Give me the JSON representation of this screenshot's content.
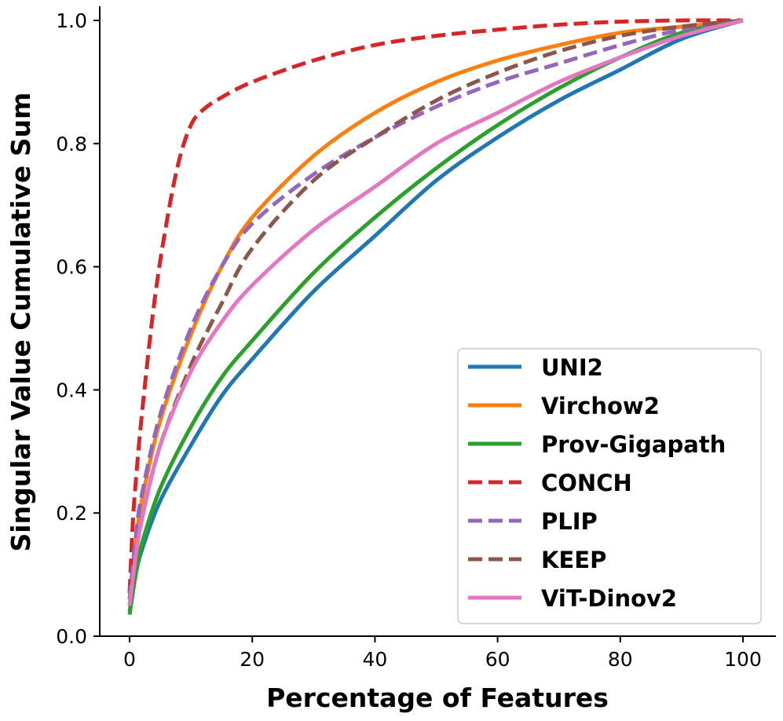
{
  "chart_data": {
    "type": "line",
    "title": "",
    "xlabel": "Percentage of Features",
    "ylabel": "Singular Value Cumulative Sum",
    "xlim": [
      -5,
      105
    ],
    "ylim": [
      0,
      1.02
    ],
    "xticks": [
      0,
      20,
      40,
      60,
      80,
      100
    ],
    "xtick_labels": [
      "0",
      "20",
      "40",
      "60",
      "80",
      "100"
    ],
    "yticks": [
      0.0,
      0.2,
      0.4,
      0.6,
      0.8,
      1.0
    ],
    "ytick_labels": [
      "0.0",
      "0.2",
      "0.4",
      "0.6",
      "0.8",
      "1.0"
    ],
    "grid": false,
    "legend_position": "lower-right",
    "series": [
      {
        "name": "UNI2",
        "color": "#1f77b4",
        "style": "solid",
        "x": [
          0,
          1,
          2,
          5,
          10,
          15,
          20,
          30,
          40,
          50,
          60,
          70,
          80,
          90,
          100
        ],
        "y": [
          0.04,
          0.1,
          0.14,
          0.22,
          0.31,
          0.39,
          0.45,
          0.56,
          0.65,
          0.74,
          0.81,
          0.87,
          0.92,
          0.97,
          1.0
        ]
      },
      {
        "name": "Virchow2",
        "color": "#ff7f0e",
        "style": "solid",
        "x": [
          0,
          1,
          2,
          5,
          10,
          15,
          20,
          30,
          40,
          50,
          60,
          70,
          80,
          90,
          100
        ],
        "y": [
          0.06,
          0.15,
          0.22,
          0.35,
          0.49,
          0.6,
          0.68,
          0.78,
          0.85,
          0.9,
          0.935,
          0.96,
          0.98,
          0.99,
          1.0
        ]
      },
      {
        "name": "Prov-Gigapath",
        "color": "#2ca02c",
        "style": "solid",
        "x": [
          0,
          1,
          2,
          5,
          10,
          15,
          20,
          30,
          40,
          50,
          60,
          70,
          80,
          90,
          100
        ],
        "y": [
          0.035,
          0.1,
          0.15,
          0.24,
          0.34,
          0.42,
          0.48,
          0.59,
          0.68,
          0.76,
          0.83,
          0.89,
          0.94,
          0.98,
          1.0
        ]
      },
      {
        "name": "CONCH",
        "color": "#d62728",
        "style": "dashed",
        "x": [
          0,
          0.5,
          1,
          2,
          4,
          6,
          8,
          10,
          12,
          15,
          20,
          30,
          40,
          50,
          60,
          70,
          80,
          90,
          100
        ],
        "y": [
          0.07,
          0.18,
          0.25,
          0.36,
          0.54,
          0.67,
          0.77,
          0.83,
          0.855,
          0.875,
          0.9,
          0.935,
          0.96,
          0.975,
          0.985,
          0.993,
          0.998,
          1.0,
          1.0
        ]
      },
      {
        "name": "PLIP",
        "color": "#9467bd",
        "style": "dashed",
        "x": [
          0,
          1,
          2,
          5,
          10,
          15,
          20,
          30,
          40,
          50,
          60,
          70,
          80,
          90,
          100
        ],
        "y": [
          0.06,
          0.16,
          0.23,
          0.36,
          0.5,
          0.6,
          0.67,
          0.75,
          0.81,
          0.86,
          0.9,
          0.93,
          0.96,
          0.985,
          1.0
        ]
      },
      {
        "name": "KEEP",
        "color": "#8c564b",
        "style": "dashed",
        "x": [
          0,
          1,
          2,
          5,
          10,
          15,
          20,
          30,
          40,
          50,
          60,
          70,
          80,
          90,
          100
        ],
        "y": [
          0.05,
          0.13,
          0.19,
          0.31,
          0.44,
          0.54,
          0.63,
          0.74,
          0.81,
          0.87,
          0.915,
          0.95,
          0.975,
          0.99,
          1.0
        ]
      },
      {
        "name": "ViT-Dinov2",
        "color": "#e377c2",
        "style": "solid",
        "x": [
          0,
          1,
          2,
          5,
          10,
          15,
          20,
          30,
          40,
          50,
          60,
          70,
          80,
          90,
          100
        ],
        "y": [
          0.05,
          0.13,
          0.19,
          0.31,
          0.43,
          0.51,
          0.57,
          0.66,
          0.73,
          0.8,
          0.85,
          0.9,
          0.94,
          0.975,
          1.0
        ]
      }
    ]
  }
}
